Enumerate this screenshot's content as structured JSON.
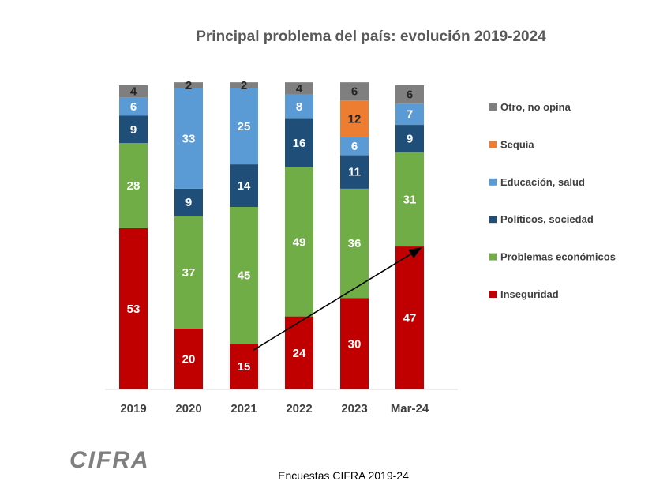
{
  "chart_data": {
    "type": "bar",
    "stacked": true,
    "title": "Principal problema del país: evolución 2019-2024",
    "categories": [
      "2019",
      "2020",
      "2021",
      "2022",
      "2023",
      "Mar-24"
    ],
    "series": [
      {
        "name": "Inseguridad",
        "color": "#c00000",
        "values": [
          53,
          20,
          15,
          24,
          30,
          47
        ]
      },
      {
        "name": "Problemas económicos",
        "color": "#70ad47",
        "values": [
          28,
          37,
          45,
          49,
          36,
          31
        ]
      },
      {
        "name": "Políticos, sociedad",
        "color": "#1f4e79",
        "values": [
          9,
          9,
          14,
          16,
          11,
          9
        ]
      },
      {
        "name": "Educación, salud",
        "color": "#5b9bd5",
        "values": [
          6,
          33,
          25,
          8,
          6,
          7
        ]
      },
      {
        "name": "Sequía",
        "color": "#ed7d31",
        "values": [
          0,
          0,
          0,
          0,
          12,
          0
        ]
      },
      {
        "name": "Otro, no opina",
        "color": "#7f7f7f",
        "values": [
          4,
          2,
          2,
          4,
          6,
          6
        ]
      }
    ],
    "ylim": [
      0,
      100
    ],
    "grid": false,
    "legend": "right",
    "annotation": "arrow from 2021 Inseguridad to Mar-24 Inseguridad"
  },
  "footer": "Encuestas CIFRA 2019-24",
  "logo": "CIFRA"
}
